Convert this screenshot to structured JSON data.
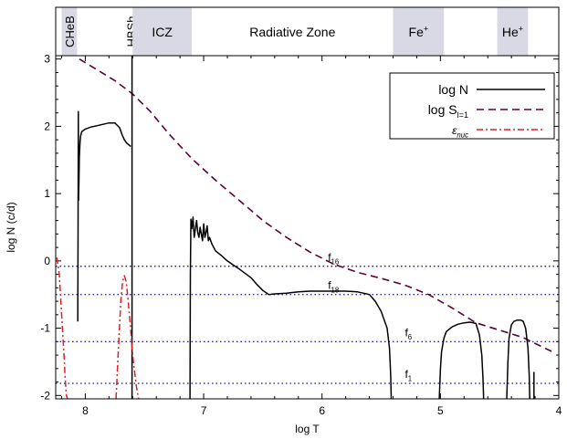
{
  "chart_data": {
    "type": "line",
    "xlabel": "log T",
    "ylabel": "log N (c/d)",
    "xlim": [
      8.25,
      4.0
    ],
    "ylim": [
      -2.05,
      3.05
    ],
    "x_ticks": [
      "8",
      "7",
      "6",
      "5",
      "4"
    ],
    "y_ticks": [
      "3",
      "2",
      "1",
      "0",
      "-1",
      "-2"
    ],
    "zones": [
      {
        "label": "CHeB",
        "from": 8.2,
        "to": 8.07,
        "shaded": true,
        "vertical": true
      },
      {
        "label": "HBSh",
        "from": 7.65,
        "to": 7.58,
        "shaded": false,
        "vertical": true
      },
      {
        "label": "ICZ",
        "from": 7.6,
        "to": 7.1,
        "shaded": true,
        "vertical": false
      },
      {
        "label": "Radiative Zone",
        "from": 7.1,
        "to": 5.4,
        "shaded": false,
        "vertical": false
      },
      {
        "label": "Fe",
        "sup": "+",
        "from": 5.4,
        "to": 4.97,
        "shaded": true,
        "vertical": false
      },
      {
        "label": "He",
        "sup": "+",
        "from": 4.52,
        "to": 4.26,
        "shaded": true,
        "vertical": false
      }
    ],
    "legend": {
      "position": "top-right",
      "entries": [
        {
          "label": "log N",
          "series": "logN"
        },
        {
          "label": "log S",
          "sub": "l=1",
          "series": "logS"
        },
        {
          "label": "ε",
          "sub": "nuc",
          "series": "eps"
        }
      ]
    },
    "hlines": [
      {
        "label": "f",
        "sub": "16",
        "y": -0.08,
        "label_x": 5.95
      },
      {
        "label": "f",
        "sub": "18",
        "y": -0.5,
        "label_x": 5.95
      },
      {
        "label": "f",
        "sub": "6",
        "y": -1.2,
        "label_x": 5.3
      },
      {
        "label": "f",
        "sub": "1",
        "y": -1.82,
        "label_x": 5.3
      }
    ],
    "series": [
      {
        "id": "logS",
        "color": "#5c0038",
        "dash": "8,5",
        "x": [
          8.05,
          7.9,
          7.75,
          7.6,
          7.45,
          7.3,
          7.1,
          6.9,
          6.7,
          6.5,
          6.3,
          6.1,
          5.9,
          5.7,
          5.5,
          5.3,
          5.1,
          4.9,
          4.7,
          4.5,
          4.3,
          4.15,
          4.03
        ],
        "y": [
          3.0,
          2.84,
          2.68,
          2.48,
          2.22,
          1.9,
          1.52,
          1.2,
          0.9,
          0.6,
          0.35,
          0.13,
          -0.05,
          -0.17,
          -0.26,
          -0.36,
          -0.5,
          -0.7,
          -0.92,
          -1.03,
          -1.14,
          -1.27,
          -1.37
        ]
      },
      {
        "id": "logN_cheb",
        "legend_series": "logN",
        "color": "#000000",
        "x": [
          8.063,
          8.061,
          8.059,
          8.057,
          8.053,
          8.05,
          8.045,
          8.04,
          8.03,
          8.0,
          7.95,
          7.9,
          7.85,
          7.8,
          7.75,
          7.71,
          7.69,
          7.67,
          7.65,
          7.615
        ],
        "y": [
          -0.9,
          0.5,
          2.22,
          0.9,
          1.2,
          1.55,
          1.75,
          1.85,
          1.92,
          1.96,
          1.99,
          2.01,
          2.03,
          2.05,
          2.05,
          1.98,
          1.88,
          1.8,
          1.75,
          1.7
        ]
      },
      {
        "id": "logN_hbsh",
        "legend_series": "logN",
        "color": "#000000",
        "x": [
          7.605,
          7.605
        ],
        "y": [
          3.05,
          -2.05
        ]
      },
      {
        "id": "logN_rad",
        "legend_series": "logN",
        "color": "#000000",
        "x": [
          7.115,
          7.112,
          7.108,
          7.1,
          7.09,
          7.08,
          7.06,
          7.05,
          7.04,
          7.03,
          7.02,
          7.01,
          7.0,
          6.99,
          6.98,
          6.97,
          6.96,
          6.95,
          6.93,
          6.9,
          6.85,
          6.8,
          6.7,
          6.6,
          6.55,
          6.5,
          6.45,
          6.4,
          6.3,
          6.2,
          6.1,
          6.0,
          5.9,
          5.8,
          5.7,
          5.6,
          5.55,
          5.5,
          5.45,
          5.43,
          5.42,
          5.415
        ],
        "y": [
          -2.05,
          -0.2,
          0.62,
          0.48,
          0.65,
          0.35,
          0.6,
          0.42,
          0.35,
          0.5,
          0.4,
          0.3,
          0.55,
          0.35,
          0.43,
          0.52,
          0.3,
          0.35,
          0.25,
          0.15,
          0.08,
          0.0,
          -0.12,
          -0.25,
          -0.35,
          -0.44,
          -0.5,
          -0.49,
          -0.48,
          -0.46,
          -0.45,
          -0.45,
          -0.45,
          -0.45,
          -0.46,
          -0.5,
          -0.6,
          -0.75,
          -1.0,
          -1.3,
          -1.7,
          -2.05
        ]
      },
      {
        "id": "logN_fe",
        "legend_series": "logN",
        "color": "#000000",
        "x": [
          5.01,
          5.0,
          4.99,
          4.97,
          4.95,
          4.9,
          4.85,
          4.8,
          4.75,
          4.7,
          4.67,
          4.65,
          4.64,
          4.635
        ],
        "y": [
          -2.05,
          -1.6,
          -1.35,
          -1.15,
          -1.05,
          -0.98,
          -0.94,
          -0.92,
          -0.91,
          -0.93,
          -1.1,
          -1.4,
          -1.75,
          -2.05
        ]
      },
      {
        "id": "logN_he",
        "legend_series": "logN",
        "color": "#000000",
        "x": [
          4.44,
          4.43,
          4.42,
          4.4,
          4.38,
          4.35,
          4.32,
          4.3,
          4.28,
          4.26,
          4.25,
          4.245
        ],
        "y": [
          -2.05,
          -1.5,
          -1.15,
          -0.95,
          -0.9,
          -0.88,
          -0.88,
          -0.9,
          -1.0,
          -1.3,
          -1.7,
          -2.05
        ]
      },
      {
        "id": "logN_end",
        "legend_series": "logN",
        "color": "#000000",
        "x": [
          4.21,
          4.21
        ],
        "y": [
          -1.65,
          -2.05
        ]
      },
      {
        "id": "eps_core",
        "legend_series": "eps",
        "color": "#e02020",
        "dash": "7,3,2,3",
        "x": [
          8.24,
          8.22,
          8.2,
          8.18,
          8.17,
          8.16,
          8.15
        ],
        "y": [
          0.05,
          -0.2,
          -0.8,
          -1.4,
          -1.75,
          -2.0,
          -2.05
        ]
      },
      {
        "id": "eps_shell",
        "legend_series": "eps",
        "color": "#e02020",
        "dash": "7,3,2,3",
        "x": [
          7.74,
          7.72,
          7.7,
          7.685,
          7.67,
          7.655,
          7.64,
          7.62,
          7.6,
          7.57,
          7.55
        ],
        "y": [
          -2.05,
          -1.3,
          -0.6,
          -0.3,
          -0.22,
          -0.3,
          -0.55,
          -0.95,
          -1.4,
          -1.85,
          -2.05
        ]
      }
    ]
  }
}
